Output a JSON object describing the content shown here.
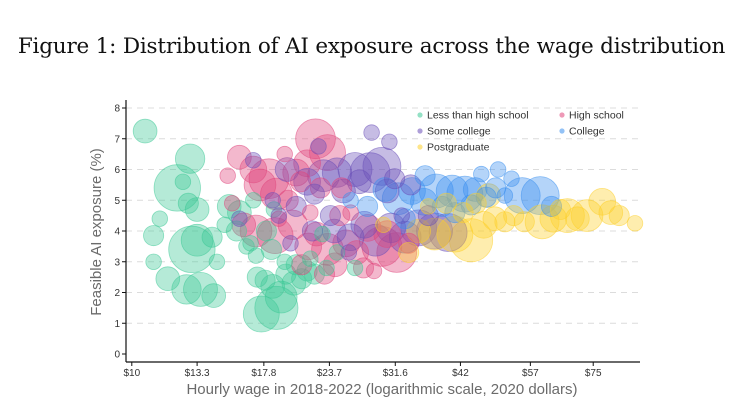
{
  "figure_title": "Figure 1: Distribution of AI exposure across the wage distribution",
  "colors": {
    "Less than high school": "#3cc896",
    "High school": "#e0457b",
    "Some college": "#6a4fb8",
    "College": "#3a8fef",
    "Postgraduate": "#fdd02a"
  },
  "chart_data": {
    "type": "scatter",
    "subtype": "bubble",
    "title": "Figure 1: Distribution of AI exposure across the wage distribution",
    "xlabel": "Hourly wage in 2018-2022 (logarithmic scale, 2020 dollars)",
    "ylabel": "Feasible AI exposure (%)",
    "x_scale": "log",
    "xlim": [
      9.75,
      92
    ],
    "ylim": [
      0,
      8
    ],
    "x_ticks": [
      10,
      13.3,
      17.8,
      23.7,
      31.6,
      42,
      57,
      75
    ],
    "x_tick_labels": [
      "$10",
      "$13.3",
      "$17.8",
      "$23.7",
      "$31.6",
      "$42",
      "$57",
      "$75"
    ],
    "y_ticks": [
      0,
      1,
      2,
      3,
      4,
      5,
      6,
      7,
      8
    ],
    "y_tick_labels": [
      "0",
      "1",
      "2",
      "3",
      "4",
      "5",
      "6",
      "7",
      "8"
    ],
    "grid": "horizontal dashed",
    "legend_position": "top-right",
    "legend": [
      "Less than high school",
      "High school",
      "Some college",
      "College",
      "Postgraduate"
    ],
    "series": [
      {
        "name": "Less than high school",
        "points": [
          {
            "wage": 10.6,
            "exposure": 7.25,
            "size": 3
          },
          {
            "wage": 12.2,
            "exposure": 5.4,
            "size": 14
          },
          {
            "wage": 12.9,
            "exposure": 6.35,
            "size": 5
          },
          {
            "wage": 13.3,
            "exposure": 4.7,
            "size": 3
          },
          {
            "wage": 12.5,
            "exposure": 5.6,
            "size": 1
          },
          {
            "wage": 12.8,
            "exposure": 4.9,
            "size": 2
          },
          {
            "wage": 11.0,
            "exposure": 3.85,
            "size": 2
          },
          {
            "wage": 11.7,
            "exposure": 2.45,
            "size": 3
          },
          {
            "wage": 13.0,
            "exposure": 3.4,
            "size": 14
          },
          {
            "wage": 13.3,
            "exposure": 3.7,
            "size": 6
          },
          {
            "wage": 14.2,
            "exposure": 3.8,
            "size": 2
          },
          {
            "wage": 12.7,
            "exposure": 2.1,
            "size": 5
          },
          {
            "wage": 13.5,
            "exposure": 2.1,
            "size": 7
          },
          {
            "wage": 14.3,
            "exposure": 1.9,
            "size": 3
          },
          {
            "wage": 14.5,
            "exposure": 3.0,
            "size": 1
          },
          {
            "wage": 15.3,
            "exposure": 4.8,
            "size": 3
          },
          {
            "wage": 16.0,
            "exposure": 4.6,
            "size": 3
          },
          {
            "wage": 15.8,
            "exposure": 4.0,
            "size": 2
          },
          {
            "wage": 16.5,
            "exposure": 3.5,
            "size": 1
          },
          {
            "wage": 17.3,
            "exposure": 2.5,
            "size": 2
          },
          {
            "wage": 17.6,
            "exposure": 1.3,
            "size": 8
          },
          {
            "wage": 18.8,
            "exposure": 1.5,
            "size": 12
          },
          {
            "wage": 19.2,
            "exposure": 1.85,
            "size": 6
          },
          {
            "wage": 17.9,
            "exposure": 2.4,
            "size": 2
          },
          {
            "wage": 18.5,
            "exposure": 2.2,
            "size": 3
          },
          {
            "wage": 19.6,
            "exposure": 2.6,
            "size": 2
          },
          {
            "wage": 20.3,
            "exposure": 2.3,
            "size": 3
          },
          {
            "wage": 21.0,
            "exposure": 2.45,
            "size": 2
          },
          {
            "wage": 21.5,
            "exposure": 2.7,
            "size": 2
          },
          {
            "wage": 20.5,
            "exposure": 2.9,
            "size": 2
          },
          {
            "wage": 19.5,
            "exposure": 3.0,
            "size": 1
          },
          {
            "wage": 18.4,
            "exposure": 3.4,
            "size": 2
          },
          {
            "wage": 17.2,
            "exposure": 3.2,
            "size": 1
          },
          {
            "wage": 16.8,
            "exposure": 3.6,
            "size": 1
          },
          {
            "wage": 18.0,
            "exposure": 4.0,
            "size": 2
          },
          {
            "wage": 18.6,
            "exposure": 4.7,
            "size": 1
          },
          {
            "wage": 17.0,
            "exposure": 5.0,
            "size": 1
          },
          {
            "wage": 22.2,
            "exposure": 2.6,
            "size": 2
          },
          {
            "wage": 21.8,
            "exposure": 3.1,
            "size": 1
          },
          {
            "wage": 23.4,
            "exposure": 2.8,
            "size": 1
          },
          {
            "wage": 11.3,
            "exposure": 4.4,
            "size": 1
          },
          {
            "wage": 11.0,
            "exposure": 3.0,
            "size": 1
          },
          {
            "wage": 15.0,
            "exposure": 4.2,
            "size": 1
          },
          {
            "wage": 24.5,
            "exposure": 3.3,
            "size": 1
          },
          {
            "wage": 26.5,
            "exposure": 2.8,
            "size": 1
          },
          {
            "wage": 23.0,
            "exposure": 3.9,
            "size": 1
          }
        ]
      },
      {
        "name": "High school",
        "points": [
          {
            "wage": 16.0,
            "exposure": 6.4,
            "size": 3
          },
          {
            "wage": 15.2,
            "exposure": 5.8,
            "size": 1
          },
          {
            "wage": 18.2,
            "exposure": 5.7,
            "size": 10
          },
          {
            "wage": 17.5,
            "exposure": 5.5,
            "size": 6
          },
          {
            "wage": 18.8,
            "exposure": 5.2,
            "size": 6
          },
          {
            "wage": 17.0,
            "exposure": 6.0,
            "size": 4
          },
          {
            "wage": 20.5,
            "exposure": 5.9,
            "size": 4
          },
          {
            "wage": 22.3,
            "exposure": 7.0,
            "size": 10
          },
          {
            "wage": 23.5,
            "exposure": 6.55,
            "size": 8
          },
          {
            "wage": 21.5,
            "exposure": 6.2,
            "size": 4
          },
          {
            "wage": 20.9,
            "exposure": 5.6,
            "size": 2
          },
          {
            "wage": 19.5,
            "exposure": 6.5,
            "size": 1
          },
          {
            "wage": 16.3,
            "exposure": 4.2,
            "size": 3
          },
          {
            "wage": 17.2,
            "exposure": 4.0,
            "size": 6
          },
          {
            "wage": 18.7,
            "exposure": 3.85,
            "size": 8
          },
          {
            "wage": 20.2,
            "exposure": 4.2,
            "size": 5
          },
          {
            "wage": 21.6,
            "exposure": 3.5,
            "size": 4
          },
          {
            "wage": 22.4,
            "exposure": 3.9,
            "size": 3
          },
          {
            "wage": 23.5,
            "exposure": 3.4,
            "size": 6
          },
          {
            "wage": 24.3,
            "exposure": 2.9,
            "size": 3
          },
          {
            "wage": 23.2,
            "exposure": 2.6,
            "size": 2
          },
          {
            "wage": 21.0,
            "exposure": 2.9,
            "size": 2
          },
          {
            "wage": 25.5,
            "exposure": 3.6,
            "size": 4
          },
          {
            "wage": 26.7,
            "exposure": 3.3,
            "size": 3
          },
          {
            "wage": 28.0,
            "exposure": 4.1,
            "size": 4
          },
          {
            "wage": 29.8,
            "exposure": 3.5,
            "size": 10
          },
          {
            "wage": 31.8,
            "exposure": 3.3,
            "size": 10
          },
          {
            "wage": 30.5,
            "exposure": 3.9,
            "size": 4
          },
          {
            "wage": 27.5,
            "exposure": 2.8,
            "size": 2
          },
          {
            "wage": 24.8,
            "exposure": 4.5,
            "size": 2
          },
          {
            "wage": 26.0,
            "exposure": 4.6,
            "size": 1
          },
          {
            "wage": 19.8,
            "exposure": 5.0,
            "size": 2
          },
          {
            "wage": 22.8,
            "exposure": 5.4,
            "size": 2
          },
          {
            "wage": 25.0,
            "exposure": 5.4,
            "size": 2
          },
          {
            "wage": 15.5,
            "exposure": 4.9,
            "size": 1
          },
          {
            "wage": 21.8,
            "exposure": 4.6,
            "size": 1
          },
          {
            "wage": 19.0,
            "exposure": 4.4,
            "size": 1
          },
          {
            "wage": 28.8,
            "exposure": 2.7,
            "size": 1
          },
          {
            "wage": 33.5,
            "exposure": 3.6,
            "size": 2
          }
        ]
      },
      {
        "name": "Some college",
        "points": [
          {
            "wage": 17.0,
            "exposure": 6.3,
            "size": 1
          },
          {
            "wage": 19.7,
            "exposure": 6.0,
            "size": 3
          },
          {
            "wage": 21.5,
            "exposure": 5.6,
            "size": 4
          },
          {
            "wage": 23.1,
            "exposure": 5.8,
            "size": 6
          },
          {
            "wage": 24.5,
            "exposure": 5.9,
            "size": 5
          },
          {
            "wage": 26.5,
            "exposure": 6.0,
            "size": 7
          },
          {
            "wage": 28.3,
            "exposure": 5.9,
            "size": 10
          },
          {
            "wage": 29.8,
            "exposure": 6.1,
            "size": 9
          },
          {
            "wage": 27.0,
            "exposure": 5.6,
            "size": 3
          },
          {
            "wage": 25.2,
            "exposure": 5.3,
            "size": 3
          },
          {
            "wage": 22.2,
            "exposure": 5.2,
            "size": 2
          },
          {
            "wage": 20.5,
            "exposure": 4.8,
            "size": 2
          },
          {
            "wage": 18.5,
            "exposure": 5.0,
            "size": 1
          },
          {
            "wage": 30.5,
            "exposure": 5.3,
            "size": 3
          },
          {
            "wage": 31.5,
            "exposure": 5.7,
            "size": 2
          },
          {
            "wage": 28.5,
            "exposure": 7.2,
            "size": 1
          },
          {
            "wage": 30.8,
            "exposure": 6.9,
            "size": 1
          },
          {
            "wage": 22.6,
            "exposure": 6.75,
            "size": 1
          },
          {
            "wage": 23.8,
            "exposure": 4.5,
            "size": 2
          },
          {
            "wage": 24.2,
            "exposure": 4.0,
            "size": 3
          },
          {
            "wage": 26.0,
            "exposure": 3.8,
            "size": 4
          },
          {
            "wage": 27.6,
            "exposure": 4.2,
            "size": 4
          },
          {
            "wage": 29.0,
            "exposure": 3.7,
            "size": 6
          },
          {
            "wage": 31.0,
            "exposure": 4.1,
            "size": 5
          },
          {
            "wage": 33.0,
            "exposure": 3.8,
            "size": 6
          },
          {
            "wage": 35.0,
            "exposure": 4.1,
            "size": 8
          },
          {
            "wage": 37.5,
            "exposure": 4.0,
            "size": 8
          },
          {
            "wage": 39.8,
            "exposure": 3.95,
            "size": 9
          },
          {
            "wage": 36.5,
            "exposure": 4.5,
            "size": 2
          },
          {
            "wage": 22.0,
            "exposure": 4.0,
            "size": 2
          },
          {
            "wage": 20.0,
            "exposure": 3.6,
            "size": 1
          },
          {
            "wage": 19.0,
            "exposure": 4.5,
            "size": 1
          },
          {
            "wage": 33.8,
            "exposure": 5.5,
            "size": 2
          },
          {
            "wage": 32.5,
            "exposure": 4.5,
            "size": 1
          },
          {
            "wage": 25.8,
            "exposure": 3.3,
            "size": 1
          },
          {
            "wage": 16.0,
            "exposure": 4.4,
            "size": 1
          }
        ]
      },
      {
        "name": "College",
        "points": [
          {
            "wage": 30.2,
            "exposure": 5.35,
            "size": 3
          },
          {
            "wage": 32.0,
            "exposure": 5.05,
            "size": 6
          },
          {
            "wage": 34.0,
            "exposure": 5.3,
            "size": 4
          },
          {
            "wage": 35.8,
            "exposure": 4.95,
            "size": 4
          },
          {
            "wage": 37.8,
            "exposure": 5.3,
            "size": 7
          },
          {
            "wage": 40.5,
            "exposure": 5.3,
            "size": 6
          },
          {
            "wage": 42.8,
            "exposure": 5.2,
            "size": 8
          },
          {
            "wage": 44.8,
            "exposure": 5.35,
            "size": 3
          },
          {
            "wage": 41.0,
            "exposure": 4.6,
            "size": 2
          },
          {
            "wage": 38.8,
            "exposure": 4.8,
            "size": 2
          },
          {
            "wage": 36.0,
            "exposure": 5.8,
            "size": 2
          },
          {
            "wage": 47.0,
            "exposure": 5.1,
            "size": 2
          },
          {
            "wage": 49.0,
            "exposure": 5.4,
            "size": 2
          },
          {
            "wage": 51.0,
            "exposure": 5.15,
            "size": 1
          },
          {
            "wage": 55.0,
            "exposure": 5.15,
            "size": 8
          },
          {
            "wage": 59.5,
            "exposure": 5.15,
            "size": 9
          },
          {
            "wage": 62.5,
            "exposure": 4.8,
            "size": 2
          },
          {
            "wage": 46.0,
            "exposure": 5.85,
            "size": 1
          },
          {
            "wage": 49.5,
            "exposure": 6.0,
            "size": 1
          },
          {
            "wage": 44.0,
            "exposure": 4.85,
            "size": 2
          },
          {
            "wage": 33.0,
            "exposure": 4.4,
            "size": 2
          },
          {
            "wage": 28.0,
            "exposure": 4.8,
            "size": 2
          },
          {
            "wage": 26.0,
            "exposure": 5.0,
            "size": 1
          },
          {
            "wage": 52.5,
            "exposure": 5.7,
            "size": 1
          }
        ]
      },
      {
        "name": "Postgraduate",
        "points": [
          {
            "wage": 35.0,
            "exposure": 4.0,
            "size": 3
          },
          {
            "wage": 37.5,
            "exposure": 3.9,
            "size": 6
          },
          {
            "wage": 41.0,
            "exposure": 3.9,
            "size": 8
          },
          {
            "wage": 44.0,
            "exposure": 3.7,
            "size": 12
          },
          {
            "wage": 46.5,
            "exposure": 4.2,
            "size": 4
          },
          {
            "wage": 48.8,
            "exposure": 4.4,
            "size": 3
          },
          {
            "wage": 51.0,
            "exposure": 4.3,
            "size": 2
          },
          {
            "wage": 53.0,
            "exposure": 4.5,
            "size": 2
          },
          {
            "wage": 55.5,
            "exposure": 4.3,
            "size": 2
          },
          {
            "wage": 60.0,
            "exposure": 4.3,
            "size": 7
          },
          {
            "wage": 63.0,
            "exposure": 4.4,
            "size": 4
          },
          {
            "wage": 67.0,
            "exposure": 4.5,
            "size": 7
          },
          {
            "wage": 70.0,
            "exposure": 4.4,
            "size": 3
          },
          {
            "wage": 73.0,
            "exposure": 4.5,
            "size": 6
          },
          {
            "wage": 78.0,
            "exposure": 4.95,
            "size": 4
          },
          {
            "wage": 81.0,
            "exposure": 4.6,
            "size": 3
          },
          {
            "wage": 84.0,
            "exposure": 4.5,
            "size": 2
          },
          {
            "wage": 90.0,
            "exposure": 4.25,
            "size": 1
          },
          {
            "wage": 42.5,
            "exposure": 4.6,
            "size": 2
          },
          {
            "wage": 39.5,
            "exposure": 4.9,
            "size": 2
          },
          {
            "wage": 47.5,
            "exposure": 5.15,
            "size": 3
          },
          {
            "wage": 45.0,
            "exposure": 4.9,
            "size": 2
          },
          {
            "wage": 33.5,
            "exposure": 3.3,
            "size": 2
          },
          {
            "wage": 36.5,
            "exposure": 4.8,
            "size": 1
          },
          {
            "wage": 30.0,
            "exposure": 4.2,
            "size": 1
          },
          {
            "wage": 65.0,
            "exposure": 4.7,
            "size": 2
          }
        ]
      }
    ]
  }
}
